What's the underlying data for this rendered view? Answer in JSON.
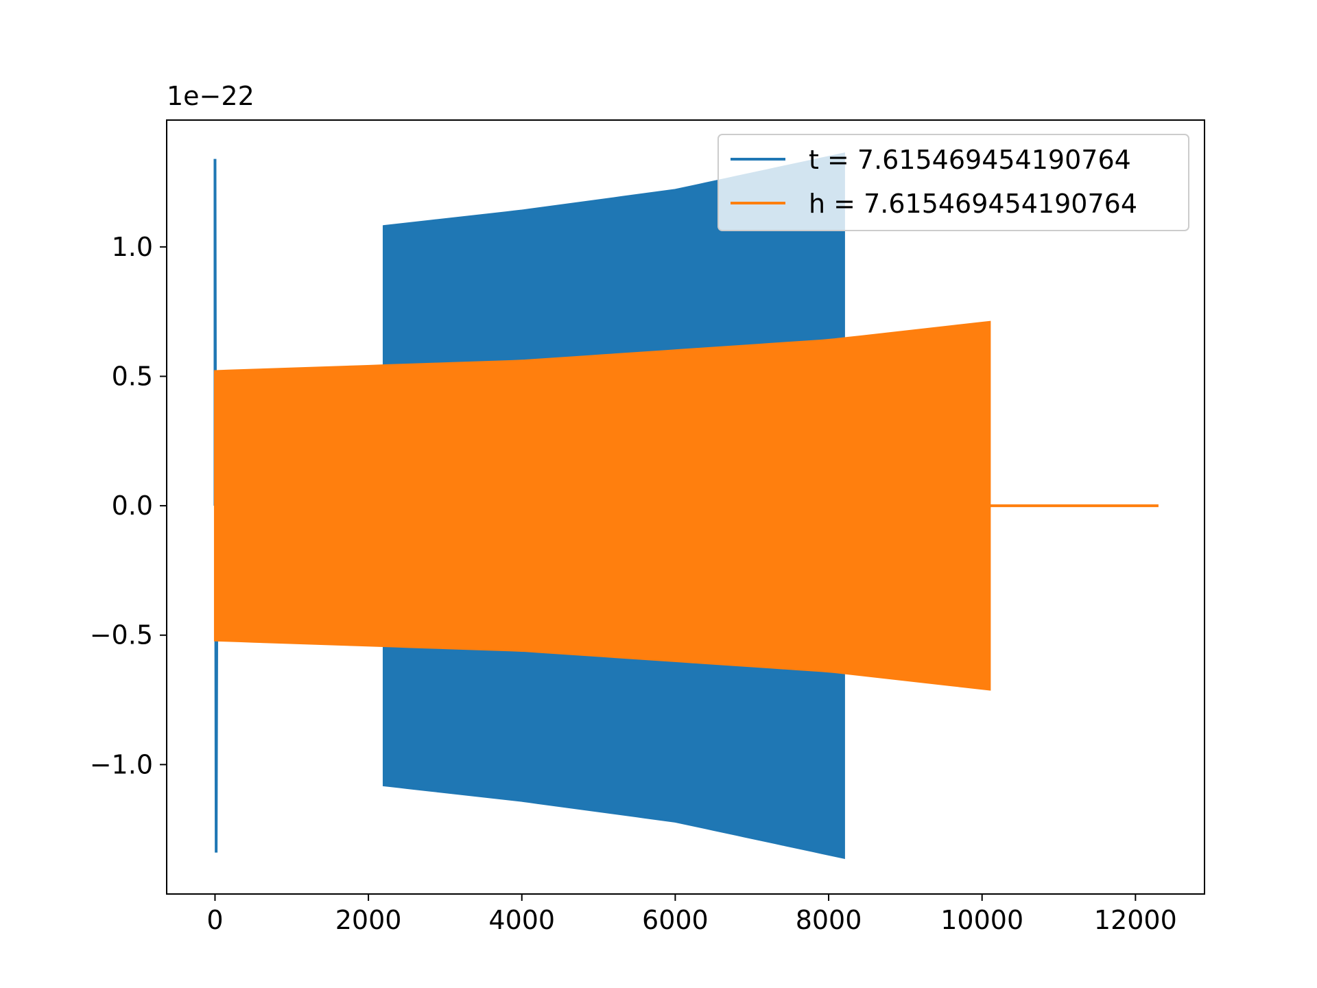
{
  "chart_data": {
    "type": "line",
    "offset_text": "1e−22",
    "xlim": [
      -630,
      12900
    ],
    "ylim": [
      -1.5,
      1.49
    ],
    "x_ticks": [
      {
        "value": 0,
        "label": "0"
      },
      {
        "value": 2000,
        "label": "2000"
      },
      {
        "value": 4000,
        "label": "4000"
      },
      {
        "value": 6000,
        "label": "6000"
      },
      {
        "value": 8000,
        "label": "8000"
      },
      {
        "value": 10000,
        "label": "10000"
      },
      {
        "value": 12000,
        "label": "12000"
      }
    ],
    "y_ticks": [
      {
        "value": -1.0,
        "label": "−1.0"
      },
      {
        "value": -0.5,
        "label": "−0.5"
      },
      {
        "value": 0.0,
        "label": "0.0"
      },
      {
        "value": 0.5,
        "label": "0.5"
      },
      {
        "value": 1.0,
        "label": "1.0"
      }
    ],
    "grid": false,
    "legend_position": "top-right",
    "series": [
      {
        "name": "t = 7.615469454190764",
        "color": "#1f77b4",
        "spike": {
          "x": 0,
          "x_end": 30,
          "amplitude": 1.34
        },
        "x_start": 2200,
        "x_end": 8200,
        "envelope": [
          [
            2200,
            1.08
          ],
          [
            4000,
            1.14
          ],
          [
            6000,
            1.22
          ],
          [
            8200,
            1.36
          ]
        ]
      },
      {
        "name": "h = 7.615469454190764",
        "color": "#ff7f0e",
        "x_start": 0,
        "x_end": 10100,
        "envelope": [
          [
            0,
            0.52
          ],
          [
            2000,
            0.54
          ],
          [
            4000,
            0.56
          ],
          [
            6000,
            0.6
          ],
          [
            8000,
            0.64
          ],
          [
            10100,
            0.71
          ]
        ],
        "tail": {
          "x_start": 10100,
          "x_end": 12300,
          "value": 0.0
        }
      }
    ]
  }
}
